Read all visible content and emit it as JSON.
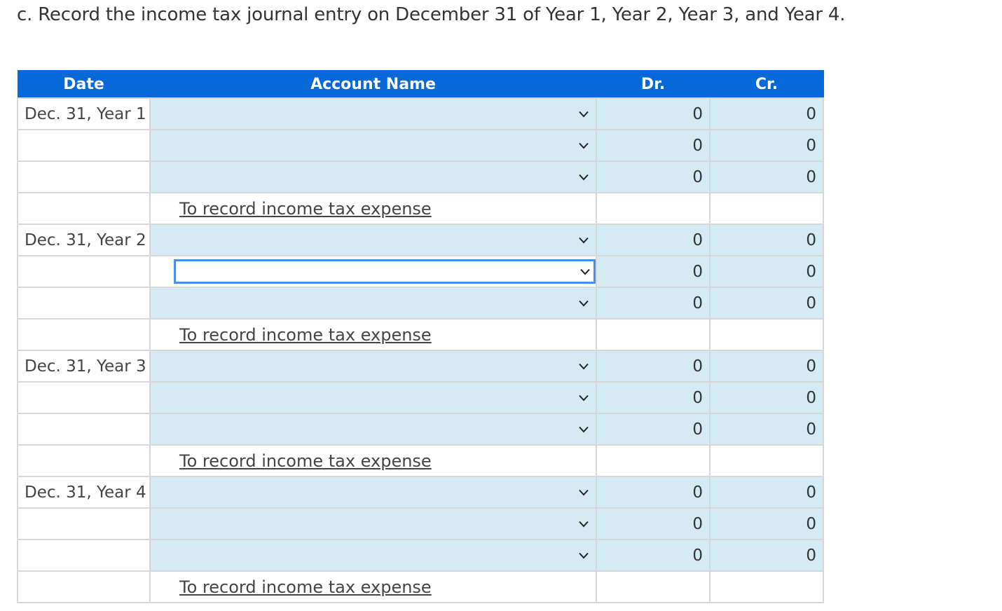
{
  "prompt": "c. Record the income tax journal entry on December 31 of Year 1, Year 2, Year 3, and Year 4.",
  "headers": {
    "date": "Date",
    "account": "Account Name",
    "dr": "Dr.",
    "cr": "Cr."
  },
  "colors": {
    "header_bg": "#0668d9",
    "input_bg": "#d4ebf3",
    "focus_border": "#4a90e2"
  },
  "entries": [
    {
      "date": "Dec. 31, Year 1",
      "rows": [
        {
          "dr": "0",
          "cr": "0"
        },
        {
          "dr": "0",
          "cr": "0"
        },
        {
          "dr": "0",
          "cr": "0"
        }
      ],
      "memo": "To record income tax expense"
    },
    {
      "date": "Dec. 31, Year 2",
      "rows": [
        {
          "dr": "0",
          "cr": "0"
        },
        {
          "dr": "0",
          "cr": "0"
        },
        {
          "dr": "0",
          "cr": "0"
        }
      ],
      "memo": "To record income tax expense"
    },
    {
      "date": "Dec. 31, Year 3",
      "rows": [
        {
          "dr": "0",
          "cr": "0"
        },
        {
          "dr": "0",
          "cr": "0"
        },
        {
          "dr": "0",
          "cr": "0"
        }
      ],
      "memo": "To record income tax expense"
    },
    {
      "date": "Dec. 31, Year 4",
      "rows": [
        {
          "dr": "0",
          "cr": "0"
        },
        {
          "dr": "0",
          "cr": "0"
        },
        {
          "dr": "0",
          "cr": "0"
        }
      ],
      "memo": "To record income tax expense"
    }
  ],
  "focused": {
    "entry": 1,
    "row": 1
  },
  "icons": {
    "dropdown": "chevron-down-icon"
  }
}
